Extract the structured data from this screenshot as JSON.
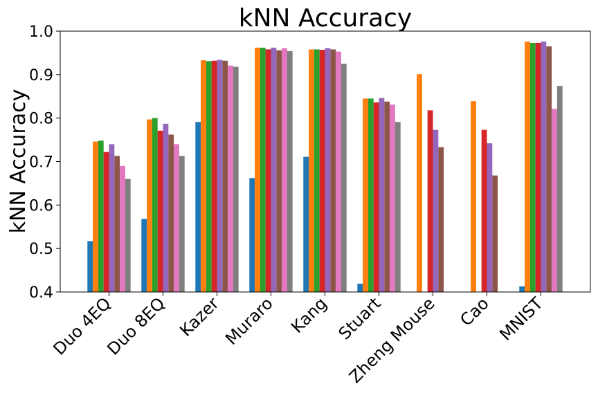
{
  "chart_data": {
    "type": "bar",
    "title": "kNN Accuracy",
    "xlabel": "",
    "ylabel": "kNN Accuracy",
    "ylim": [
      0.4,
      1.0
    ],
    "yticks": [
      "0.4",
      "0.5",
      "0.6",
      "0.7",
      "0.8",
      "0.9",
      "1.0"
    ],
    "grid": false,
    "legend": "none",
    "categories": [
      "Duo 4EQ",
      "Duo 8EQ",
      "Kazer",
      "Muraro",
      "Kang",
      "Stuart",
      "Zheng Mouse",
      "Cao",
      "MNIST"
    ],
    "series": [
      {
        "color": "#1f77b4",
        "values": [
          0.517,
          0.568,
          0.791,
          0.662,
          0.711,
          0.419,
          null,
          null,
          0.413
        ]
      },
      {
        "color": "#ff7f0e",
        "values": [
          0.746,
          0.797,
          0.933,
          0.962,
          0.958,
          0.845,
          0.901,
          0.839,
          0.976
        ]
      },
      {
        "color": "#2ca02c",
        "values": [
          0.748,
          0.8,
          0.931,
          0.962,
          0.958,
          0.845,
          null,
          null,
          0.973
        ]
      },
      {
        "color": "#d62728",
        "values": [
          0.722,
          0.771,
          0.932,
          0.958,
          0.957,
          0.836,
          0.818,
          0.773,
          0.973
        ]
      },
      {
        "color": "#9467bd",
        "values": [
          0.74,
          0.787,
          0.934,
          0.962,
          0.961,
          0.846,
          0.773,
          0.742,
          0.976
        ]
      },
      {
        "color": "#8c564b",
        "values": [
          0.713,
          0.762,
          0.932,
          0.956,
          0.958,
          0.838,
          0.733,
          0.668,
          0.965
        ]
      },
      {
        "color": "#e377c2",
        "values": [
          0.69,
          0.74,
          0.921,
          0.961,
          0.953,
          0.831,
          null,
          null,
          0.821
        ]
      },
      {
        "color": "#7f7f7f",
        "values": [
          0.66,
          0.713,
          0.918,
          0.954,
          0.925,
          0.791,
          null,
          null,
          0.874
        ]
      }
    ]
  }
}
